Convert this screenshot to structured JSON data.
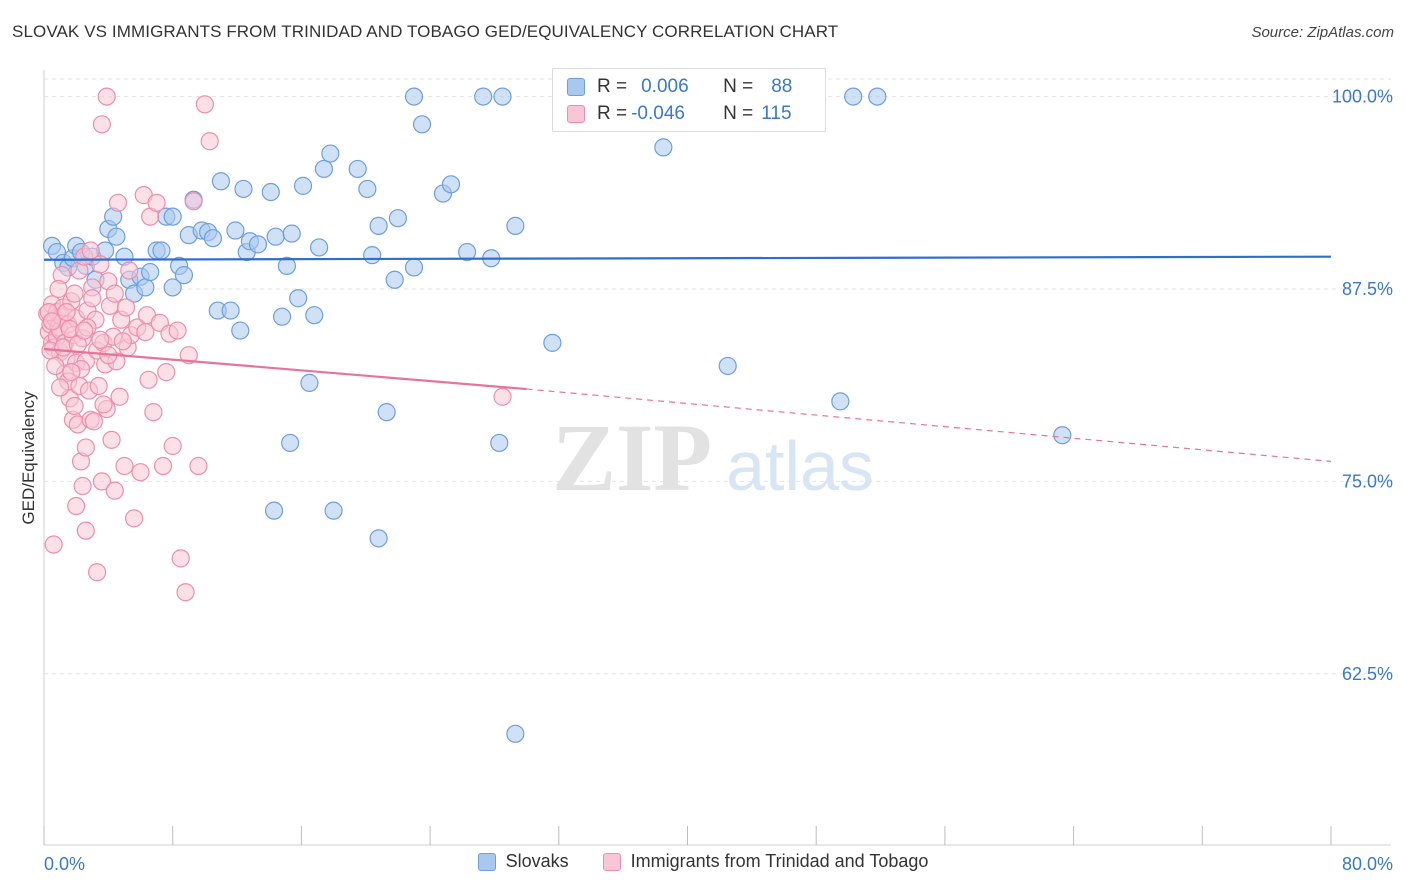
{
  "title": "SLOVAK VS IMMIGRANTS FROM TRINIDAD AND TOBAGO GED/EQUIVALENCY CORRELATION CHART",
  "source": "Source: ZipAtlas.com",
  "watermark": {
    "zip": "ZIP",
    "atlas": "atlas"
  },
  "stats_box": {
    "rows": [
      {
        "r_label": "R =",
        "r_value": "0.006",
        "n_label": "N =",
        "n_value": "88",
        "color": "#a9c8ef"
      },
      {
        "r_label": "R =",
        "r_value": "-0.046",
        "n_label": "N =",
        "n_value": "115",
        "color": "#f6b8cc"
      }
    ]
  },
  "legend": [
    {
      "label": "Slovaks",
      "color": "#a9c8ef",
      "border": "#6e9fdc"
    },
    {
      "label": "Immigrants from Trinidad and Tobago",
      "color": "#f8c6d5",
      "border": "#ee8eaa"
    }
  ],
  "chart_data": {
    "type": "scatter",
    "title": "SLOVAK VS IMMIGRANTS FROM TRINIDAD AND TOBAGO GED/EQUIVALENCY CORRELATION CHART",
    "xlabel": "",
    "ylabel": "GED/Equivalency",
    "xlim": [
      0,
      80
    ],
    "ylim": [
      50,
      101.5
    ],
    "x_tick_labels": [
      "0.0%",
      "80.0%"
    ],
    "y_ticks": [
      62.5,
      75.0,
      87.5,
      100.0
    ],
    "y_tick_labels": [
      "62.5%",
      "75.0%",
      "87.5%",
      "100.0%"
    ],
    "grid": true,
    "legend_position": "bottom",
    "series": [
      {
        "name": "Slovaks",
        "color": "#6e9fdc",
        "fill": "#a9c8ef",
        "trend": {
          "x": [
            0,
            80
          ],
          "y": [
            89.4,
            89.6
          ],
          "color": "#2f6fcb"
        },
        "points": [
          [
            0.5,
            90.3
          ],
          [
            0.8,
            89.9
          ],
          [
            1.2,
            89.2
          ],
          [
            1.5,
            88.9
          ],
          [
            1.8,
            89.5
          ],
          [
            2.0,
            90.3
          ],
          [
            2.3,
            89.9
          ],
          [
            2.6,
            89.0
          ],
          [
            3.0,
            89.6
          ],
          [
            3.2,
            88.1
          ],
          [
            3.8,
            90.0
          ],
          [
            4.0,
            91.4
          ],
          [
            4.3,
            92.2
          ],
          [
            4.5,
            90.9
          ],
          [
            5.0,
            89.6
          ],
          [
            5.3,
            88.1
          ],
          [
            5.6,
            87.2
          ],
          [
            6.0,
            88.3
          ],
          [
            6.3,
            87.6
          ],
          [
            6.6,
            88.6
          ],
          [
            7.0,
            90.0
          ],
          [
            7.3,
            90.0
          ],
          [
            7.6,
            92.2
          ],
          [
            8.0,
            87.6
          ],
          [
            8.4,
            89.0
          ],
          [
            8.7,
            88.4
          ],
          [
            9.0,
            91.0
          ],
          [
            9.3,
            93.3
          ],
          [
            9.8,
            91.3
          ],
          [
            10.2,
            91.2
          ],
          [
            10.5,
            90.8
          ],
          [
            10.8,
            86.1
          ],
          [
            11.0,
            94.5
          ],
          [
            11.6,
            86.1
          ],
          [
            11.9,
            91.3
          ],
          [
            12.2,
            84.8
          ],
          [
            12.4,
            94.0
          ],
          [
            12.6,
            89.9
          ],
          [
            12.8,
            90.6
          ],
          [
            13.3,
            90.4
          ],
          [
            14.1,
            93.8
          ],
          [
            14.4,
            90.9
          ],
          [
            14.8,
            85.7
          ],
          [
            15.1,
            89.0
          ],
          [
            15.4,
            91.1
          ],
          [
            15.8,
            86.9
          ],
          [
            16.1,
            94.2
          ],
          [
            16.5,
            81.4
          ],
          [
            16.8,
            85.8
          ],
          [
            17.1,
            90.2
          ],
          [
            17.4,
            95.3
          ],
          [
            17.8,
            96.3
          ],
          [
            19.5,
            95.3
          ],
          [
            20.1,
            94.0
          ],
          [
            20.4,
            89.7
          ],
          [
            20.8,
            91.6
          ],
          [
            21.3,
            79.5
          ],
          [
            21.8,
            88.1
          ],
          [
            22.0,
            92.1
          ],
          [
            23.0,
            88.9
          ],
          [
            23.0,
            100.0
          ],
          [
            23.5,
            98.2
          ],
          [
            24.8,
            93.7
          ],
          [
            25.3,
            94.3
          ],
          [
            26.3,
            89.9
          ],
          [
            27.3,
            100.0
          ],
          [
            27.8,
            89.5
          ],
          [
            28.5,
            100.0
          ],
          [
            29.3,
            91.6
          ],
          [
            31.6,
            84.0
          ],
          [
            37.5,
            100.0
          ],
          [
            38.0,
            100.0
          ],
          [
            38.5,
            96.7
          ],
          [
            42.5,
            82.5
          ],
          [
            49.5,
            80.2
          ],
          [
            50.3,
            100.0
          ],
          [
            51.8,
            100.0
          ],
          [
            63.3,
            78.0
          ],
          [
            8.0,
            92.2
          ],
          [
            15.3,
            77.5
          ],
          [
            28.3,
            77.5
          ],
          [
            14.3,
            73.1
          ],
          [
            18.0,
            73.1
          ],
          [
            20.8,
            71.3
          ],
          [
            29.3,
            58.6
          ]
        ]
      },
      {
        "name": "Immigrants from Trinidad and Tobago",
        "color": "#ee8eaa",
        "fill": "#f8c6d5",
        "trend": {
          "x": [
            0,
            30
          ],
          "y": [
            83.6,
            81.0
          ],
          "x_dashed": [
            30,
            80
          ],
          "y_dashed": [
            81.0,
            76.3
          ],
          "color": "#e8739a"
        },
        "points": [
          [
            0.2,
            85.9
          ],
          [
            0.3,
            84.7
          ],
          [
            0.4,
            85.2
          ],
          [
            0.5,
            84.0
          ],
          [
            0.5,
            86.5
          ],
          [
            0.6,
            83.7
          ],
          [
            0.7,
            85.6
          ],
          [
            0.8,
            84.4
          ],
          [
            0.8,
            86.0
          ],
          [
            0.9,
            85.0
          ],
          [
            1.0,
            83.4
          ],
          [
            1.0,
            84.8
          ],
          [
            1.1,
            85.7
          ],
          [
            1.2,
            86.3
          ],
          [
            1.3,
            84.0
          ],
          [
            1.3,
            82.0
          ],
          [
            1.4,
            83.0
          ],
          [
            1.5,
            85.2
          ],
          [
            1.5,
            81.5
          ],
          [
            1.6,
            80.4
          ],
          [
            1.7,
            86.7
          ],
          [
            1.8,
            84.5
          ],
          [
            1.8,
            79.0
          ],
          [
            1.9,
            87.2
          ],
          [
            2.0,
            82.7
          ],
          [
            2.0,
            85.6
          ],
          [
            2.1,
            78.7
          ],
          [
            2.2,
            81.2
          ],
          [
            2.2,
            88.7
          ],
          [
            2.3,
            76.3
          ],
          [
            2.4,
            84.3
          ],
          [
            2.4,
            74.7
          ],
          [
            2.5,
            89.6
          ],
          [
            2.6,
            82.8
          ],
          [
            2.6,
            77.2
          ],
          [
            2.7,
            86.1
          ],
          [
            2.8,
            80.9
          ],
          [
            2.9,
            79.0
          ],
          [
            3.0,
            87.6
          ],
          [
            3.1,
            78.9
          ],
          [
            3.2,
            85.5
          ],
          [
            3.3,
            83.5
          ],
          [
            3.4,
            81.2
          ],
          [
            3.5,
            89.1
          ],
          [
            3.6,
            75.0
          ],
          [
            3.7,
            84.0
          ],
          [
            3.8,
            82.6
          ],
          [
            3.9,
            79.7
          ],
          [
            4.0,
            88.0
          ],
          [
            4.1,
            86.4
          ],
          [
            4.2,
            77.7
          ],
          [
            4.3,
            84.4
          ],
          [
            4.4,
            74.4
          ],
          [
            4.5,
            82.8
          ],
          [
            4.6,
            93.1
          ],
          [
            4.7,
            80.5
          ],
          [
            4.8,
            85.5
          ],
          [
            5.0,
            76.0
          ],
          [
            5.2,
            83.7
          ],
          [
            5.3,
            88.7
          ],
          [
            5.4,
            84.5
          ],
          [
            5.6,
            72.6
          ],
          [
            5.8,
            85.0
          ],
          [
            6.0,
            75.6
          ],
          [
            6.2,
            93.6
          ],
          [
            6.4,
            85.8
          ],
          [
            6.6,
            92.2
          ],
          [
            6.8,
            79.5
          ],
          [
            7.0,
            93.1
          ],
          [
            7.2,
            85.3
          ],
          [
            7.4,
            76.0
          ],
          [
            7.6,
            82.1
          ],
          [
            7.8,
            84.6
          ],
          [
            8.0,
            77.3
          ],
          [
            8.3,
            84.8
          ],
          [
            8.5,
            70.0
          ],
          [
            8.8,
            67.8
          ],
          [
            9.0,
            83.2
          ],
          [
            9.3,
            93.2
          ],
          [
            9.6,
            76.0
          ],
          [
            10.0,
            99.5
          ],
          [
            10.3,
            97.1
          ],
          [
            3.6,
            98.2
          ],
          [
            3.9,
            100.0
          ],
          [
            0.6,
            70.9
          ],
          [
            2.6,
            71.8
          ],
          [
            3.3,
            69.1
          ],
          [
            0.3,
            86.0
          ],
          [
            0.4,
            83.5
          ],
          [
            0.7,
            82.5
          ],
          [
            1.1,
            88.4
          ],
          [
            1.4,
            86.0
          ],
          [
            2.0,
            73.4
          ],
          [
            2.9,
            90.0
          ],
          [
            3.7,
            80.0
          ],
          [
            4.9,
            84.1
          ],
          [
            1.6,
            84.9
          ],
          [
            0.9,
            87.5
          ],
          [
            2.3,
            82.3
          ],
          [
            1.2,
            83.7
          ],
          [
            5.1,
            86.3
          ],
          [
            6.5,
            81.6
          ],
          [
            3.0,
            86.9
          ],
          [
            2.1,
            83.9
          ],
          [
            1.9,
            79.9
          ],
          [
            0.5,
            85.4
          ],
          [
            4.0,
            83.2
          ],
          [
            1.0,
            81.1
          ],
          [
            2.7,
            85.0
          ],
          [
            3.5,
            84.2
          ],
          [
            1.7,
            82.1
          ],
          [
            6.3,
            84.7
          ],
          [
            28.5,
            80.5
          ],
          [
            4.4,
            87.2
          ],
          [
            2.5,
            84.8
          ]
        ]
      }
    ]
  }
}
